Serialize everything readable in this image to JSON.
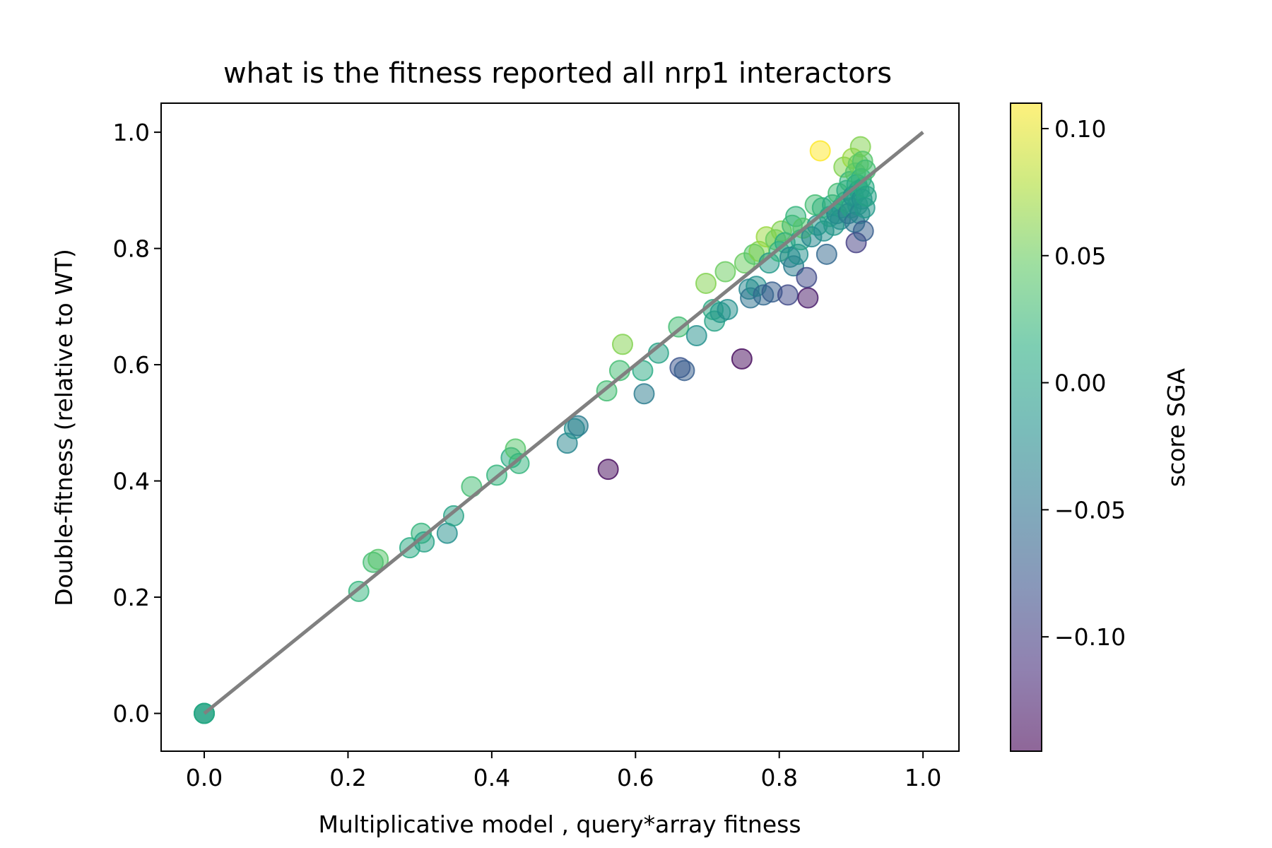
{
  "chart_data": {
    "type": "scatter",
    "title": "what is the fitness reported all nrp1 interactors",
    "xlabel": "Multiplicative model , query*array fitness",
    "ylabel": "Double-fitness (relative to WT)",
    "xlim": [
      -0.06,
      1.05
    ],
    "ylim": [
      -0.065,
      1.05
    ],
    "x_ticks": [
      0.0,
      0.2,
      0.4,
      0.6,
      0.8,
      1.0
    ],
    "x_tick_labels": [
      "0.0",
      "0.2",
      "0.4",
      "0.6",
      "0.8",
      "1.0"
    ],
    "y_ticks": [
      0.0,
      0.2,
      0.4,
      0.6,
      0.8,
      1.0
    ],
    "y_tick_labels": [
      "0.0",
      "0.2",
      "0.4",
      "0.6",
      "0.8",
      "1.0"
    ],
    "grid": false,
    "reference_line": {
      "x": [
        0,
        1
      ],
      "y": [
        0,
        1
      ],
      "color": "#808080"
    },
    "colorbar": {
      "label": "score SGA",
      "colormap": "viridis",
      "range": [
        -0.145,
        0.11
      ],
      "ticks": [
        0.1,
        0.05,
        0.0,
        -0.05,
        -0.1
      ],
      "tick_labels": [
        "0.10",
        "0.05",
        "0.00",
        "−0.05",
        "−0.10"
      ]
    },
    "points": [
      {
        "x": 0.0,
        "y": 0.0,
        "c": 0.0
      },
      {
        "x": 0.0,
        "y": 0.0,
        "c": -0.01
      },
      {
        "x": 0.0,
        "y": 0.0,
        "c": 0.01
      },
      {
        "x": 0.215,
        "y": 0.21,
        "c": 0.02
      },
      {
        "x": 0.235,
        "y": 0.26,
        "c": 0.03
      },
      {
        "x": 0.242,
        "y": 0.265,
        "c": 0.04
      },
      {
        "x": 0.286,
        "y": 0.285,
        "c": 0.01
      },
      {
        "x": 0.302,
        "y": 0.31,
        "c": 0.02
      },
      {
        "x": 0.306,
        "y": 0.295,
        "c": 0.0
      },
      {
        "x": 0.338,
        "y": 0.31,
        "c": -0.02
      },
      {
        "x": 0.347,
        "y": 0.34,
        "c": 0.0
      },
      {
        "x": 0.372,
        "y": 0.39,
        "c": 0.03
      },
      {
        "x": 0.407,
        "y": 0.41,
        "c": 0.02
      },
      {
        "x": 0.427,
        "y": 0.44,
        "c": 0.01
      },
      {
        "x": 0.433,
        "y": 0.455,
        "c": 0.04
      },
      {
        "x": 0.438,
        "y": 0.43,
        "c": 0.02
      },
      {
        "x": 0.505,
        "y": 0.465,
        "c": -0.03
      },
      {
        "x": 0.515,
        "y": 0.49,
        "c": -0.02
      },
      {
        "x": 0.52,
        "y": 0.495,
        "c": -0.04
      },
      {
        "x": 0.562,
        "y": 0.42,
        "c": -0.14
      },
      {
        "x": 0.56,
        "y": 0.555,
        "c": 0.03
      },
      {
        "x": 0.578,
        "y": 0.59,
        "c": 0.03
      },
      {
        "x": 0.582,
        "y": 0.635,
        "c": 0.06
      },
      {
        "x": 0.61,
        "y": 0.59,
        "c": 0.01
      },
      {
        "x": 0.612,
        "y": 0.55,
        "c": -0.04
      },
      {
        "x": 0.632,
        "y": 0.62,
        "c": 0.0
      },
      {
        "x": 0.66,
        "y": 0.665,
        "c": 0.03
      },
      {
        "x": 0.662,
        "y": 0.595,
        "c": -0.08
      },
      {
        "x": 0.668,
        "y": 0.59,
        "c": -0.07
      },
      {
        "x": 0.685,
        "y": 0.65,
        "c": -0.02
      },
      {
        "x": 0.698,
        "y": 0.74,
        "c": 0.06
      },
      {
        "x": 0.708,
        "y": 0.695,
        "c": 0.01
      },
      {
        "x": 0.71,
        "y": 0.675,
        "c": 0.0
      },
      {
        "x": 0.718,
        "y": 0.69,
        "c": -0.01
      },
      {
        "x": 0.725,
        "y": 0.76,
        "c": 0.05
      },
      {
        "x": 0.728,
        "y": 0.695,
        "c": -0.02
      },
      {
        "x": 0.748,
        "y": 0.61,
        "c": -0.14
      },
      {
        "x": 0.752,
        "y": 0.775,
        "c": 0.05
      },
      {
        "x": 0.758,
        "y": 0.73,
        "c": -0.03
      },
      {
        "x": 0.76,
        "y": 0.715,
        "c": -0.05
      },
      {
        "x": 0.765,
        "y": 0.79,
        "c": 0.04
      },
      {
        "x": 0.768,
        "y": 0.735,
        "c": -0.02
      },
      {
        "x": 0.772,
        "y": 0.795,
        "c": 0.06
      },
      {
        "x": 0.778,
        "y": 0.72,
        "c": -0.06
      },
      {
        "x": 0.782,
        "y": 0.82,
        "c": 0.07
      },
      {
        "x": 0.786,
        "y": 0.775,
        "c": -0.01
      },
      {
        "x": 0.79,
        "y": 0.725,
        "c": -0.07
      },
      {
        "x": 0.795,
        "y": 0.815,
        "c": 0.05
      },
      {
        "x": 0.8,
        "y": 0.795,
        "c": 0.02
      },
      {
        "x": 0.803,
        "y": 0.83,
        "c": 0.06
      },
      {
        "x": 0.808,
        "y": 0.81,
        "c": 0.01
      },
      {
        "x": 0.812,
        "y": 0.72,
        "c": -0.09
      },
      {
        "x": 0.815,
        "y": 0.785,
        "c": -0.03
      },
      {
        "x": 0.818,
        "y": 0.84,
        "c": 0.03
      },
      {
        "x": 0.82,
        "y": 0.77,
        "c": -0.04
      },
      {
        "x": 0.823,
        "y": 0.855,
        "c": 0.02
      },
      {
        "x": 0.826,
        "y": 0.79,
        "c": -0.02
      },
      {
        "x": 0.83,
        "y": 0.815,
        "c": 0.0
      },
      {
        "x": 0.833,
        "y": 0.835,
        "c": 0.04
      },
      {
        "x": 0.838,
        "y": 0.75,
        "c": -0.09
      },
      {
        "x": 0.84,
        "y": 0.715,
        "c": -0.13
      },
      {
        "x": 0.845,
        "y": 0.82,
        "c": -0.03
      },
      {
        "x": 0.85,
        "y": 0.875,
        "c": 0.03
      },
      {
        "x": 0.853,
        "y": 0.84,
        "c": -0.01
      },
      {
        "x": 0.857,
        "y": 0.968,
        "c": 0.11
      },
      {
        "x": 0.86,
        "y": 0.87,
        "c": 0.02
      },
      {
        "x": 0.862,
        "y": 0.83,
        "c": -0.02
      },
      {
        "x": 0.866,
        "y": 0.79,
        "c": -0.06
      },
      {
        "x": 0.87,
        "y": 0.855,
        "c": 0.0
      },
      {
        "x": 0.874,
        "y": 0.875,
        "c": 0.01
      },
      {
        "x": 0.876,
        "y": 0.84,
        "c": -0.01
      },
      {
        "x": 0.88,
        "y": 0.86,
        "c": -0.03
      },
      {
        "x": 0.882,
        "y": 0.895,
        "c": 0.03
      },
      {
        "x": 0.885,
        "y": 0.85,
        "c": -0.02
      },
      {
        "x": 0.887,
        "y": 0.87,
        "c": -0.01
      },
      {
        "x": 0.89,
        "y": 0.94,
        "c": 0.06
      },
      {
        "x": 0.892,
        "y": 0.88,
        "c": 0.02
      },
      {
        "x": 0.894,
        "y": 0.9,
        "c": 0.01
      },
      {
        "x": 0.896,
        "y": 0.86,
        "c": -0.04
      },
      {
        "x": 0.898,
        "y": 0.915,
        "c": 0.02
      },
      {
        "x": 0.9,
        "y": 0.87,
        "c": 0.0
      },
      {
        "x": 0.902,
        "y": 0.955,
        "c": 0.07
      },
      {
        "x": 0.903,
        "y": 0.89,
        "c": -0.02
      },
      {
        "x": 0.905,
        "y": 0.845,
        "c": -0.05
      },
      {
        "x": 0.906,
        "y": 0.93,
        "c": 0.04
      },
      {
        "x": 0.907,
        "y": 0.81,
        "c": -0.1
      },
      {
        "x": 0.908,
        "y": 0.91,
        "c": 0.01
      },
      {
        "x": 0.909,
        "y": 0.875,
        "c": -0.01
      },
      {
        "x": 0.91,
        "y": 0.945,
        "c": 0.05
      },
      {
        "x": 0.911,
        "y": 0.9,
        "c": 0.0
      },
      {
        "x": 0.912,
        "y": 0.86,
        "c": -0.03
      },
      {
        "x": 0.913,
        "y": 0.975,
        "c": 0.06
      },
      {
        "x": 0.914,
        "y": 0.92,
        "c": 0.02
      },
      {
        "x": 0.915,
        "y": 0.885,
        "c": -0.02
      },
      {
        "x": 0.916,
        "y": 0.95,
        "c": 0.04
      },
      {
        "x": 0.917,
        "y": 0.83,
        "c": -0.07
      },
      {
        "x": 0.918,
        "y": 0.905,
        "c": 0.01
      },
      {
        "x": 0.919,
        "y": 0.87,
        "c": -0.01
      },
      {
        "x": 0.92,
        "y": 0.935,
        "c": 0.03
      },
      {
        "x": 0.921,
        "y": 0.89,
        "c": 0.0
      }
    ]
  }
}
